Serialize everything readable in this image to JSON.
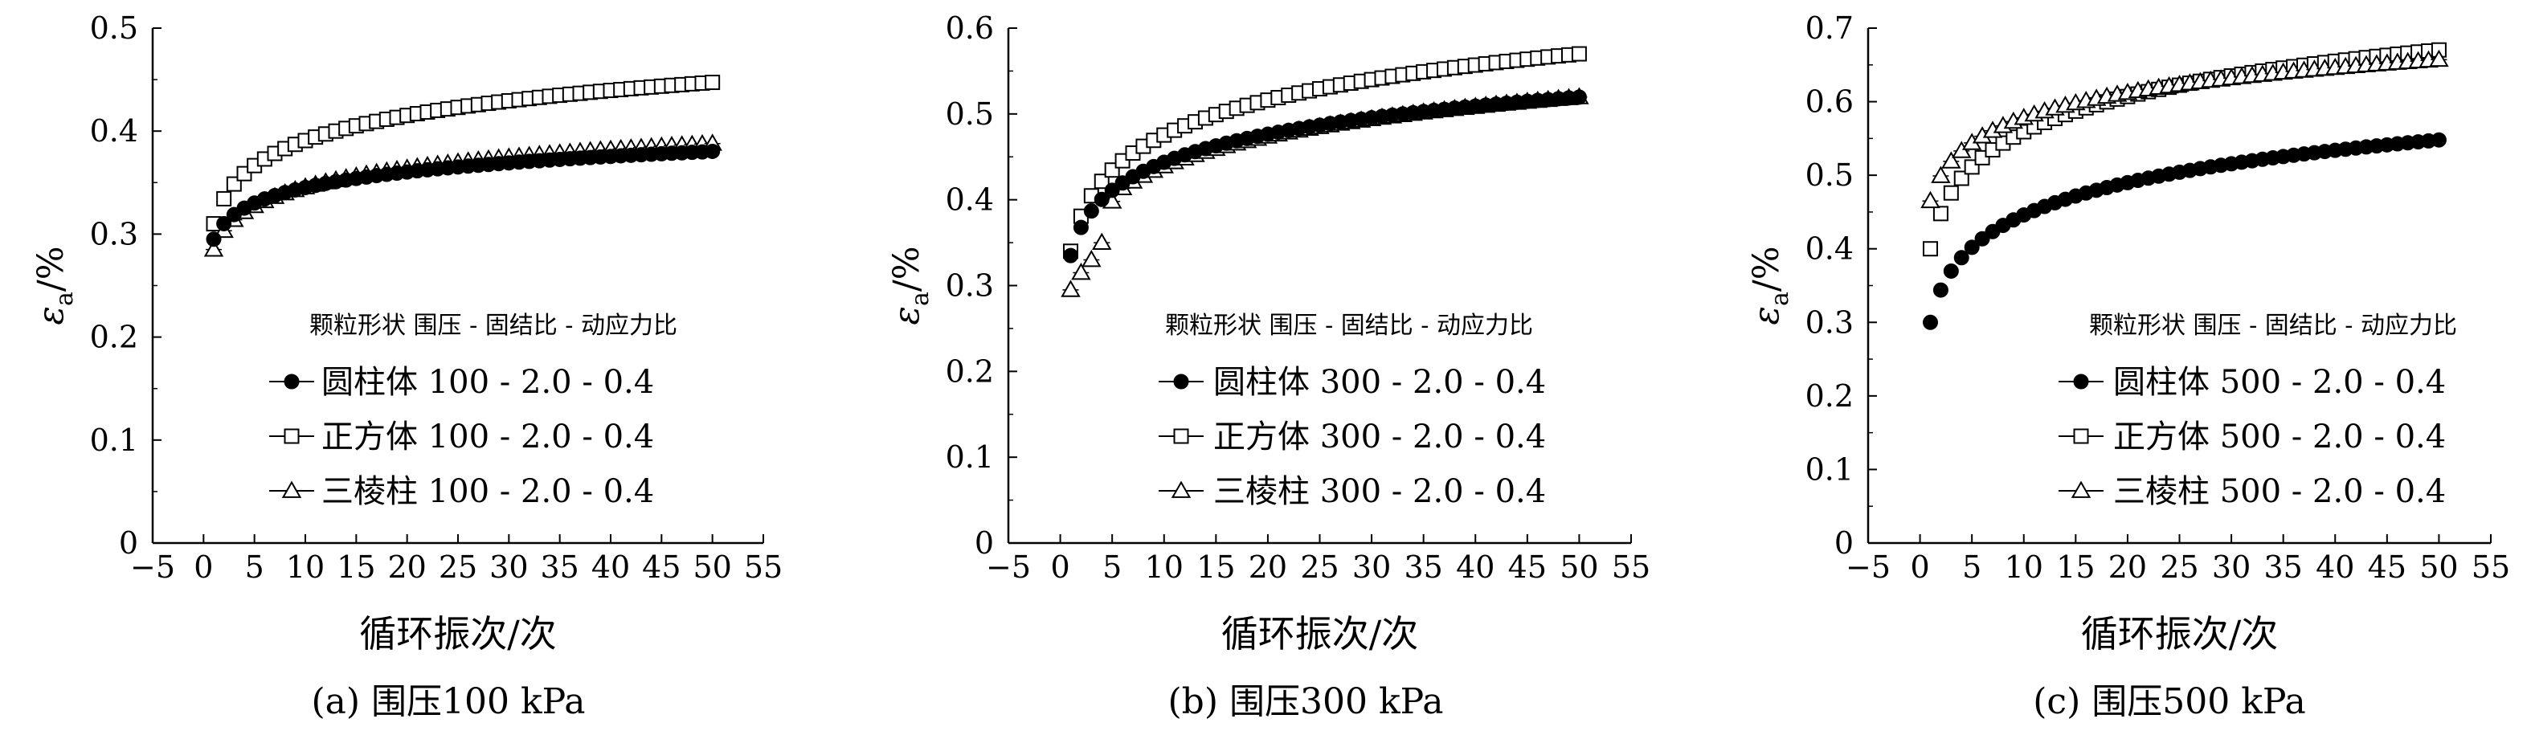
{
  "chart_data": [
    {
      "type": "scatter",
      "caption": "(a) 围压100 kPa",
      "xlabel": "循环振次/次",
      "ylabel_main": "ε",
      "ylabel_sub": "a",
      "ylabel_unit": "/%",
      "xlim": [
        -5,
        55
      ],
      "ylim": [
        0,
        0.5
      ],
      "xticks": [
        -5,
        0,
        5,
        10,
        15,
        20,
        25,
        30,
        35,
        40,
        45,
        50,
        55
      ],
      "yticks": [
        0,
        0.1,
        0.2,
        0.3,
        0.4,
        0.5
      ],
      "legend_title": "颗粒形状 围压 - 固结比 - 动应力比",
      "legend_position": "lower-right",
      "series": [
        {
          "name": "圆柱体 100 - 2.0 - 0.4",
          "marker": "circle-filled",
          "curve": {
            "c": 0.295,
            "k": 0.0218
          }
        },
        {
          "name": "正方体 100 - 2.0 - 0.4",
          "marker": "square-open",
          "curve": {
            "c": 0.31,
            "k": 0.0351
          }
        },
        {
          "name": "三棱柱 100 - 2.0 - 0.4",
          "marker": "triangle-open",
          "curve": {
            "c": 0.285,
            "k": 0.0263
          }
        }
      ]
    },
    {
      "type": "scatter",
      "caption": "(b) 围压300 kPa",
      "xlabel": "循环振次/次",
      "ylabel_main": "ε",
      "ylabel_sub": "a",
      "ylabel_unit": "/%",
      "xlim": [
        -5,
        55
      ],
      "ylim": [
        0,
        0.6
      ],
      "xticks": [
        -5,
        0,
        5,
        10,
        15,
        20,
        25,
        30,
        35,
        40,
        45,
        50,
        55
      ],
      "yticks": [
        0,
        0.1,
        0.2,
        0.3,
        0.4,
        0.5,
        0.6
      ],
      "legend_title": "颗粒形状 围压 - 固结比 - 动应力比",
      "legend_position": "lower-right",
      "series": [
        {
          "name": "圆柱体 300 - 2.0 - 0.4",
          "marker": "circle-filled",
          "curve": {
            "c": 0.335,
            "k": 0.0472
          }
        },
        {
          "name": "正方体 300 - 2.0 - 0.4",
          "marker": "square-open",
          "curve": {
            "c": 0.34,
            "k": 0.0588
          }
        },
        {
          "name": "三棱柱 300 - 2.0 - 0.4",
          "marker": "triangle-open",
          "points": [
            [
              1,
              0.295
            ],
            [
              2,
              0.315
            ],
            [
              3,
              0.33
            ],
            [
              4,
              0.35
            ],
            [
              5,
              0.398
            ]
          ],
          "curve": {
            "c": 0.324,
            "k": 0.05,
            "start": 6
          }
        }
      ]
    },
    {
      "type": "scatter",
      "caption": "(c) 围压500 kPa",
      "xlabel": "循环振次/次",
      "ylabel_main": "ε",
      "ylabel_sub": "a",
      "ylabel_unit": "/%",
      "xlim": [
        -5,
        55
      ],
      "ylim": [
        0,
        0.7
      ],
      "xticks": [
        -5,
        0,
        5,
        10,
        15,
        20,
        25,
        30,
        35,
        40,
        45,
        50,
        55
      ],
      "yticks": [
        0,
        0.1,
        0.2,
        0.3,
        0.4,
        0.5,
        0.6,
        0.7
      ],
      "legend_title": "颗粒形状 围压 - 固结比 - 动应力比",
      "legend_position": "lower-right",
      "series": [
        {
          "name": "圆柱体 500 - 2.0 - 0.4",
          "marker": "circle-filled",
          "curve": {
            "c": 0.3,
            "k": 0.0634
          }
        },
        {
          "name": "正方体 500 - 2.0 - 0.4",
          "marker": "square-open",
          "curve": {
            "c": 0.4,
            "k": 0.0691
          }
        },
        {
          "name": "三棱柱 500 - 2.0 - 0.4",
          "marker": "triangle-open",
          "curve": {
            "c": 0.465,
            "k": 0.0491
          }
        }
      ]
    }
  ]
}
